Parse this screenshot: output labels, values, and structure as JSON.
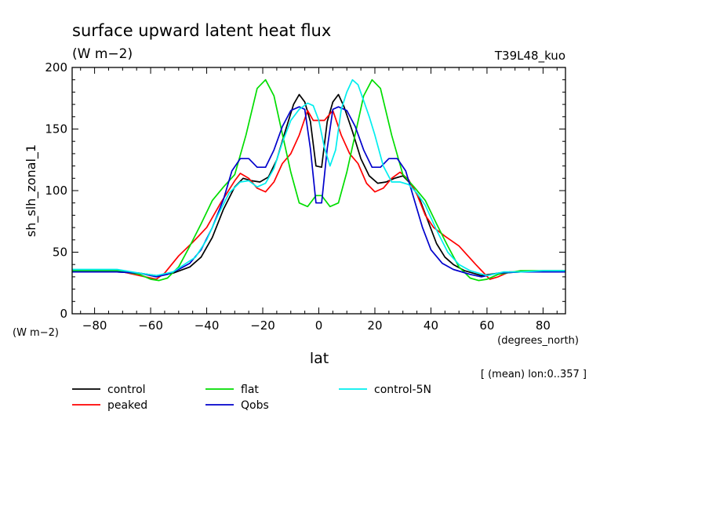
{
  "chart_data": {
    "type": "line",
    "title": "surface upward latent heat flux",
    "subtitle": "(W m−2)",
    "run_label": "T39L48_kuo",
    "ylabel": "sh_slh_zonal_1",
    "y_unit": "(W m−2)",
    "xlabel": "lat",
    "x_unit": "(degrees_north)",
    "footnote": "[ (mean) lon:0..357 ]",
    "xlim": [
      -88,
      88
    ],
    "ylim": [
      0,
      200
    ],
    "x_ticks": [
      -80,
      -60,
      -40,
      -20,
      0,
      20,
      40,
      60,
      80
    ],
    "x_tick_labels": [
      "−80",
      "−60",
      "−40",
      "−20",
      "0",
      "20",
      "40",
      "60",
      "80"
    ],
    "y_ticks": [
      0,
      50,
      100,
      150,
      200
    ],
    "y_tick_labels": [
      "0",
      "50",
      "100",
      "150",
      "200"
    ],
    "grid": false,
    "legend_position": "bottom",
    "series": [
      {
        "name": "control",
        "color": "#000000",
        "x": [
          -88,
          -80,
          -72,
          -64,
          -58,
          -52,
          -46,
          -42,
          -38,
          -34,
          -30,
          -27,
          -24,
          -21,
          -18,
          -15,
          -12,
          -9,
          -7,
          -5,
          -3,
          -1,
          1,
          3,
          5,
          7,
          9,
          12,
          15,
          18,
          21,
          24,
          27,
          30,
          33,
          36,
          39,
          42,
          45,
          48,
          52,
          58,
          64,
          72,
          80,
          88
        ],
        "y": [
          34,
          34,
          34,
          33,
          31,
          33,
          38,
          46,
          62,
          85,
          103,
          110,
          108,
          107,
          111,
          125,
          148,
          170,
          178,
          172,
          156,
          120,
          119,
          156,
          172,
          178,
          168,
          148,
          126,
          112,
          106,
          107,
          110,
          112,
          105,
          93,
          75,
          57,
          46,
          40,
          35,
          31,
          33,
          34,
          34,
          34
        ]
      },
      {
        "name": "peaked",
        "color": "#ff0000",
        "x": [
          -88,
          -80,
          -72,
          -64,
          -58,
          -55,
          -50,
          -45,
          -40,
          -35,
          -30,
          -28,
          -25,
          -22,
          -19,
          -16,
          -13,
          -10,
          -7,
          -4,
          -2,
          0,
          2,
          5,
          8,
          11,
          14,
          17,
          20,
          23,
          26,
          29,
          32,
          35,
          38,
          41,
          45,
          50,
          56,
          61,
          64,
          68,
          72,
          80,
          88
        ],
        "y": [
          35,
          35,
          35,
          31,
          28,
          33,
          47,
          58,
          70,
          90,
          108,
          114,
          110,
          102,
          99,
          107,
          122,
          130,
          145,
          165,
          157,
          157,
          157,
          165,
          145,
          130,
          122,
          106,
          99,
          102,
          110,
          115,
          109,
          97,
          80,
          70,
          63,
          55,
          40,
          28,
          30,
          34,
          34,
          35,
          35
        ]
      },
      {
        "name": "flat",
        "color": "#00dd00",
        "x": [
          -88,
          -80,
          -72,
          -64,
          -60,
          -57,
          -54,
          -50,
          -46,
          -42,
          -38,
          -34,
          -30,
          -26,
          -22,
          -19,
          -16,
          -13,
          -10,
          -7,
          -4,
          -1,
          1,
          4,
          7,
          10,
          13,
          16,
          19,
          22,
          26,
          30,
          34,
          38,
          42,
          46,
          50,
          54,
          57,
          60,
          64,
          72,
          80,
          88
        ],
        "y": [
          35,
          35,
          35,
          32,
          28,
          27,
          29,
          38,
          55,
          73,
          92,
          103,
          113,
          145,
          183,
          190,
          177,
          146,
          115,
          90,
          87,
          96,
          96,
          87,
          90,
          115,
          146,
          177,
          190,
          183,
          145,
          113,
          103,
          92,
          73,
          55,
          38,
          29,
          27,
          28,
          32,
          35,
          35,
          35
        ]
      },
      {
        "name": "Qobs",
        "color": "#0000cc",
        "x": [
          -88,
          -80,
          -72,
          -64,
          -58,
          -54,
          -50,
          -46,
          -42,
          -38,
          -34,
          -31,
          -28,
          -25,
          -22,
          -19,
          -16,
          -13,
          -10,
          -7,
          -5,
          -3,
          -1,
          1,
          3,
          5,
          7,
          10,
          13,
          16,
          19,
          22,
          25,
          28,
          31,
          34,
          37,
          40,
          44,
          48,
          54,
          58,
          64,
          72,
          80,
          88
        ],
        "y": [
          34,
          34,
          34,
          33,
          30,
          32,
          36,
          41,
          52,
          70,
          93,
          116,
          126,
          126,
          119,
          119,
          133,
          152,
          165,
          168,
          166,
          134,
          90,
          90,
          134,
          166,
          168,
          165,
          152,
          133,
          119,
          119,
          126,
          126,
          116,
          93,
          70,
          52,
          41,
          36,
          32,
          30,
          33,
          34,
          34,
          34
        ]
      },
      {
        "name": "control-5N",
        "color": "#00eeee",
        "x": [
          -88,
          -80,
          -72,
          -64,
          -58,
          -52,
          -48,
          -44,
          -40,
          -36,
          -32,
          -28,
          -25,
          -22,
          -19,
          -16,
          -13,
          -10,
          -7,
          -4,
          -2,
          0,
          2,
          4,
          6,
          8,
          10,
          12,
          14,
          16,
          18,
          20,
          23,
          26,
          29,
          32,
          35,
          38,
          42,
          46,
          50,
          54,
          60,
          66,
          72,
          80,
          88
        ],
        "y": [
          36,
          36,
          36,
          33,
          31,
          34,
          40,
          46,
          60,
          80,
          98,
          107,
          108,
          103,
          106,
          118,
          139,
          157,
          166,
          171,
          169,
          157,
          135,
          120,
          133,
          166,
          180,
          190,
          186,
          173,
          160,
          145,
          120,
          107,
          107,
          105,
          98,
          88,
          68,
          50,
          40,
          35,
          31,
          34,
          34,
          35,
          35
        ]
      }
    ]
  }
}
